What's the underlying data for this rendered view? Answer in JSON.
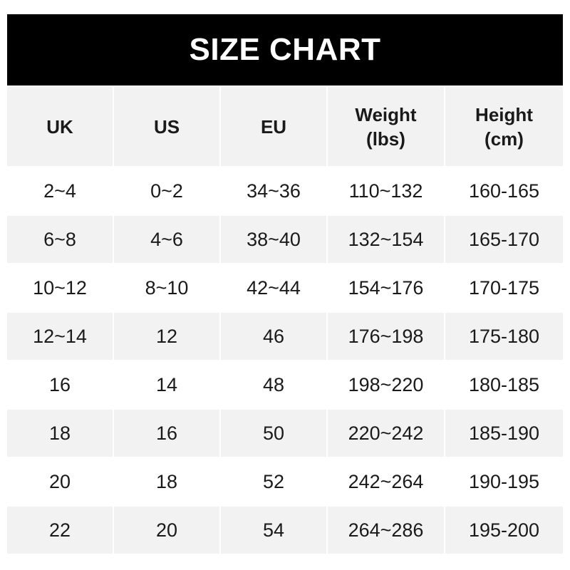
{
  "title": "SIZE CHART",
  "headers": [
    {
      "line1": "UK",
      "line2": ""
    },
    {
      "line1": "US",
      "line2": ""
    },
    {
      "line1": "EU",
      "line2": ""
    },
    {
      "line1": "Weight",
      "line2": "(lbs)"
    },
    {
      "line1": "Height",
      "line2": "(cm)"
    }
  ],
  "rows": [
    [
      "2~4",
      "0~2",
      "34~36",
      "110~132",
      "160-165"
    ],
    [
      "6~8",
      "4~6",
      "38~40",
      "132~154",
      "165-170"
    ],
    [
      "10~12",
      "8~10",
      "42~44",
      "154~176",
      "170-175"
    ],
    [
      "12~14",
      "12",
      "46",
      "176~198",
      "175-180"
    ],
    [
      "16",
      "14",
      "48",
      "198~220",
      "180-185"
    ],
    [
      "18",
      "16",
      "50",
      "220~242",
      "185-190"
    ],
    [
      "20",
      "18",
      "52",
      "242~264",
      "190-195"
    ],
    [
      "22",
      "20",
      "54",
      "264~286",
      "195-200"
    ]
  ],
  "colors": {
    "title_bg": "#000000",
    "header_bg": "#f2f2f2",
    "stripe_bg": "#f2f2f2"
  }
}
